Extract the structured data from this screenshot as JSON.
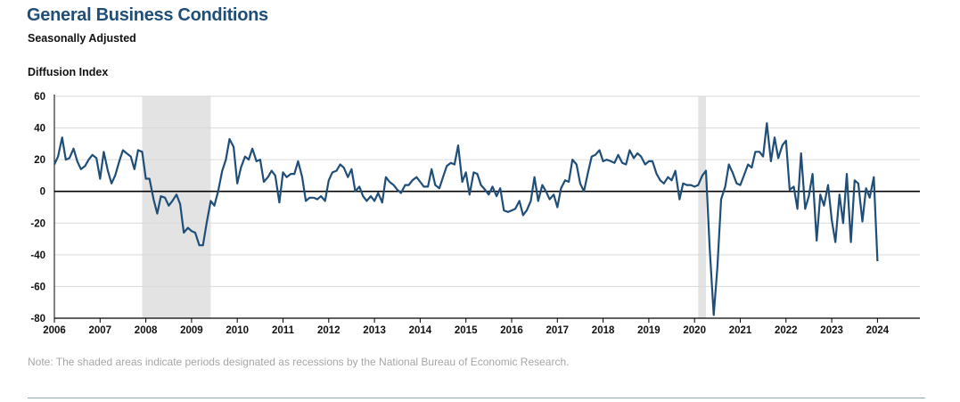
{
  "title": "General Business Conditions",
  "subtitle": "Seasonally Adjusted",
  "note": "Note: The shaded areas indicate periods designated as recessions by the National Bureau of Economic Research.",
  "colors": {
    "line": "#1f4e79",
    "recession": "#e3e3e3",
    "grid": "#d9d9d9",
    "zero": "#000000",
    "title": "#1f4e79",
    "note": "#a6a6a6"
  },
  "chart_data": {
    "type": "line",
    "ylabel": "Diffusion Index",
    "ylim": [
      -80,
      60
    ],
    "yticks": [
      60,
      40,
      20,
      0,
      -20,
      -40,
      -60,
      -80
    ],
    "xlim": [
      2006,
      2025
    ],
    "xticks": [
      "2006",
      "2007",
      "2008",
      "2009",
      "2010",
      "2011",
      "2012",
      "2013",
      "2014",
      "2015",
      "2016",
      "2017",
      "2018",
      "2019",
      "2020",
      "2021",
      "2022",
      "2023",
      "2024"
    ],
    "grid": true,
    "recessions": [
      [
        2007.92,
        2009.42
      ],
      [
        2020.08,
        2020.25
      ]
    ],
    "series": [
      {
        "x": [
          2006.0,
          2006.08,
          2006.17,
          2006.25,
          2006.33,
          2006.42,
          2006.5,
          2006.58,
          2006.67,
          2006.75,
          2006.83,
          2006.92,
          2007.0,
          2007.08,
          2007.17,
          2007.25,
          2007.33,
          2007.42,
          2007.5,
          2007.58,
          2007.67,
          2007.75,
          2007.83,
          2007.92,
          2008.0,
          2008.08,
          2008.17,
          2008.25,
          2008.33,
          2008.42,
          2008.5,
          2008.58,
          2008.67,
          2008.75,
          2008.83,
          2008.92,
          2009.0,
          2009.08,
          2009.17,
          2009.25,
          2009.33,
          2009.42,
          2009.5,
          2009.58,
          2009.67,
          2009.75,
          2009.83,
          2009.92,
          2010.0,
          2010.08,
          2010.17,
          2010.25,
          2010.33,
          2010.42,
          2010.5,
          2010.58,
          2010.67,
          2010.75,
          2010.83,
          2010.92,
          2011.0,
          2011.08,
          2011.17,
          2011.25,
          2011.33,
          2011.42,
          2011.5,
          2011.58,
          2011.67,
          2011.75,
          2011.83,
          2011.92,
          2012.0,
          2012.08,
          2012.17,
          2012.25,
          2012.33,
          2012.42,
          2012.5,
          2012.58,
          2012.67,
          2012.75,
          2012.83,
          2012.92,
          2013.0,
          2013.08,
          2013.17,
          2013.25,
          2013.33,
          2013.42,
          2013.5,
          2013.58,
          2013.67,
          2013.75,
          2013.83,
          2013.92,
          2014.0,
          2014.08,
          2014.17,
          2014.25,
          2014.33,
          2014.42,
          2014.5,
          2014.58,
          2014.67,
          2014.75,
          2014.83,
          2014.92,
          2015.0,
          2015.08,
          2015.17,
          2015.25,
          2015.33,
          2015.42,
          2015.5,
          2015.58,
          2015.67,
          2015.75,
          2015.83,
          2015.92,
          2016.0,
          2016.08,
          2016.17,
          2016.25,
          2016.33,
          2016.42,
          2016.5,
          2016.58,
          2016.67,
          2016.75,
          2016.83,
          2016.92,
          2017.0,
          2017.08,
          2017.17,
          2017.25,
          2017.33,
          2017.42,
          2017.5,
          2017.58,
          2017.67,
          2017.75,
          2017.83,
          2017.92,
          2018.0,
          2018.08,
          2018.17,
          2018.25,
          2018.33,
          2018.42,
          2018.5,
          2018.58,
          2018.67,
          2018.75,
          2018.83,
          2018.92,
          2019.0,
          2019.08,
          2019.17,
          2019.25,
          2019.33,
          2019.42,
          2019.5,
          2019.58,
          2019.67,
          2019.75,
          2019.83,
          2019.92,
          2020.0,
          2020.08,
          2020.17,
          2020.25,
          2020.33,
          2020.42,
          2020.5,
          2020.58,
          2020.67,
          2020.75,
          2020.83,
          2020.92,
          2021.0,
          2021.08,
          2021.17,
          2021.25,
          2021.33,
          2021.42,
          2021.5,
          2021.58,
          2021.67,
          2021.75,
          2021.83,
          2021.92,
          2022.0,
          2022.08,
          2022.17,
          2022.25,
          2022.33,
          2022.42,
          2022.5,
          2022.58,
          2022.67,
          2022.75,
          2022.83,
          2022.92,
          2023.0,
          2023.08,
          2023.17,
          2023.25,
          2023.33,
          2023.42,
          2023.5,
          2023.58,
          2023.67,
          2023.75,
          2023.83,
          2023.92,
          2024.0
        ],
        "values": [
          17,
          22,
          34,
          20,
          21,
          27,
          19,
          14,
          16,
          20,
          23,
          21,
          8,
          25,
          13,
          5,
          10,
          19,
          26,
          24,
          22,
          14,
          26,
          25,
          8,
          8,
          -5,
          -14,
          -3,
          -4,
          -9,
          -6,
          -2,
          -8,
          -26,
          -23,
          -25,
          -26,
          -34,
          -34,
          -20,
          -6,
          -9,
          0,
          13,
          20,
          33,
          28,
          5,
          15,
          22,
          20,
          27,
          19,
          20,
          6,
          9,
          13,
          10,
          -7,
          12,
          9,
          11,
          11,
          19,
          9,
          -6,
          -4,
          -4,
          -5,
          -3,
          -6,
          7,
          12,
          13,
          17,
          15,
          9,
          14,
          0,
          3,
          -3,
          -6,
          -3,
          -6,
          -1,
          -7,
          9,
          6,
          4,
          1,
          -1,
          4,
          4,
          7,
          9,
          6,
          3,
          3,
          14,
          4,
          2,
          9,
          16,
          18,
          17,
          29,
          6,
          12,
          -2,
          12,
          11,
          4,
          1,
          -2,
          3,
          -3,
          2,
          -12,
          -13,
          -12,
          -11,
          -6,
          -15,
          -12,
          -6,
          9,
          -6,
          4,
          0,
          -5,
          -2,
          -10,
          2,
          7,
          6,
          20,
          17,
          5,
          0,
          12,
          22,
          23,
          26,
          19,
          20,
          19,
          18,
          23,
          18,
          17,
          26,
          21,
          24,
          22,
          17,
          19,
          19,
          11,
          7,
          5,
          9,
          7,
          13,
          -5,
          5,
          4,
          4,
          3,
          4,
          10,
          13,
          -35,
          -78,
          -48,
          -5,
          3,
          17,
          12,
          5,
          4,
          10,
          17,
          15,
          25,
          25,
          22,
          43,
          19,
          34,
          21,
          29,
          32,
          1,
          3,
          -11,
          24,
          -11,
          -3,
          11,
          -31,
          -2,
          -9,
          4,
          -18,
          -32,
          -2,
          -20,
          11,
          -32,
          7,
          5,
          -19,
          2,
          -4,
          9,
          -44
        ]
      }
    ]
  }
}
